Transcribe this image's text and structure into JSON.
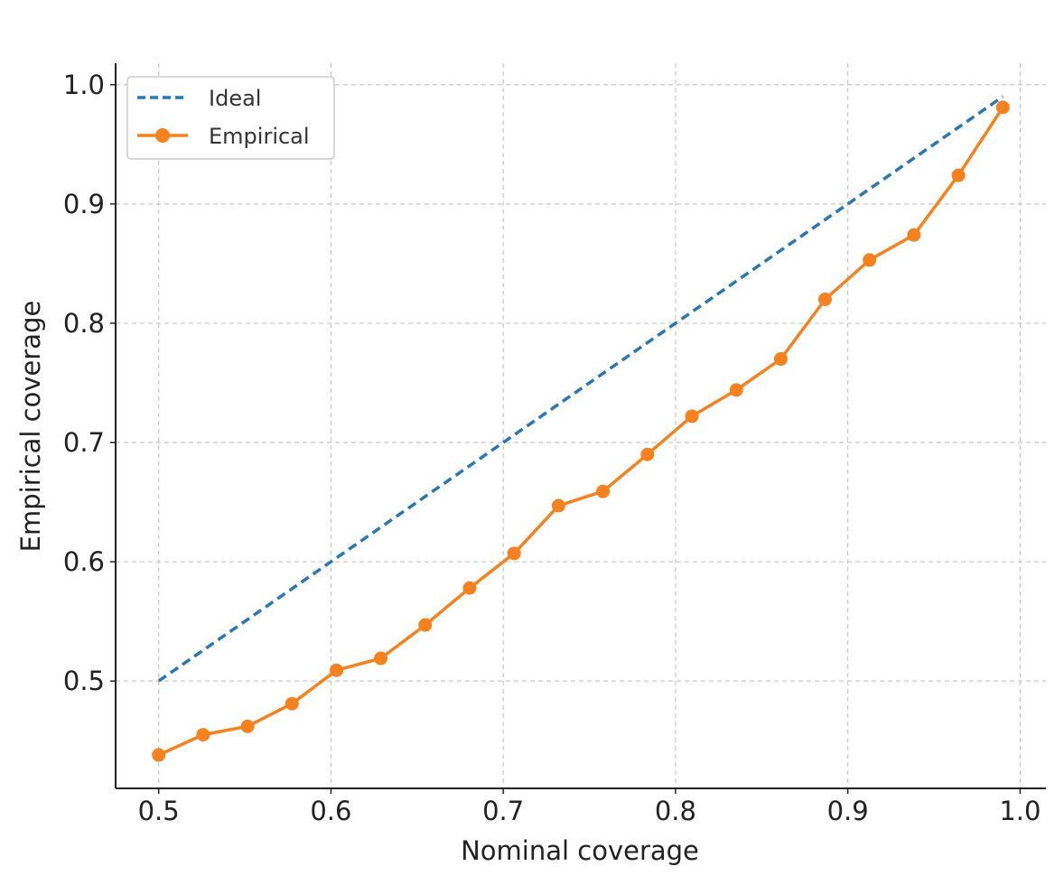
{
  "chart_data": {
    "type": "line",
    "title": "",
    "xlabel": "Nominal coverage",
    "ylabel": "Empirical coverage",
    "xlim": [
      0.475,
      1.015
    ],
    "ylim": [
      0.41,
      1.018
    ],
    "xticks": [
      0.5,
      0.6,
      0.7,
      0.8,
      0.9,
      1.0
    ],
    "xtick_labels": [
      "0.5",
      "0.6",
      "0.7",
      "0.8",
      "0.9",
      "1.0"
    ],
    "yticks": [
      0.5,
      0.6,
      0.7,
      0.8,
      0.9,
      1.0
    ],
    "ytick_labels": [
      "0.5",
      "0.6",
      "0.7",
      "0.8",
      "0.9",
      "1.0"
    ],
    "grid": true,
    "legend_position": "top-left",
    "series": [
      {
        "name": "Ideal",
        "style": "dashed",
        "color": "#2878b5",
        "x": [
          0.5,
          0.99
        ],
        "y": [
          0.5,
          0.99
        ]
      },
      {
        "name": "Empirical",
        "style": "solid-markers",
        "color": "#f5821f",
        "x": [
          0.5,
          0.5258,
          0.5516,
          0.5774,
          0.6032,
          0.6289,
          0.6547,
          0.6805,
          0.7063,
          0.7321,
          0.7579,
          0.7837,
          0.8095,
          0.8353,
          0.8611,
          0.8868,
          0.9126,
          0.9384,
          0.9642,
          0.99
        ],
        "y": [
          0.438,
          0.455,
          0.462,
          0.481,
          0.509,
          0.519,
          0.547,
          0.578,
          0.607,
          0.647,
          0.659,
          0.69,
          0.722,
          0.744,
          0.77,
          0.82,
          0.853,
          0.874,
          0.924,
          0.981
        ]
      }
    ]
  }
}
